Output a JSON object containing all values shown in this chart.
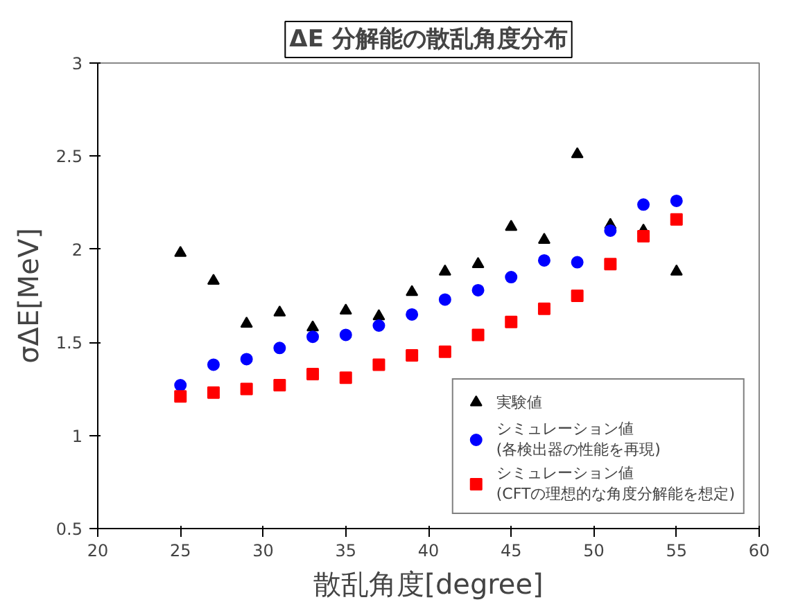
{
  "chart_data": {
    "type": "scatter",
    "title": "ΔE 分解能の散乱角度分布",
    "xlabel": "散乱角度[degree]",
    "ylabel": "σΔE[MeV]",
    "x": [
      25,
      27,
      29,
      31,
      33,
      35,
      37,
      39,
      41,
      43,
      45,
      47,
      49,
      51,
      53,
      55
    ],
    "series": [
      {
        "name": "実験値",
        "color": "#000000",
        "marker": "triangle",
        "values": [
          1.98,
          1.83,
          1.6,
          1.66,
          1.58,
          1.67,
          1.64,
          1.77,
          1.88,
          1.92,
          2.12,
          2.05,
          2.51,
          2.13,
          2.1,
          1.88
        ]
      },
      {
        "name": "シミュレーション値\n(各検出器の性能を再現)",
        "color": "#0000ff",
        "marker": "circle",
        "values": [
          1.27,
          1.38,
          1.41,
          1.47,
          1.53,
          1.54,
          1.59,
          1.65,
          1.73,
          1.78,
          1.85,
          1.94,
          1.93,
          2.1,
          2.24,
          2.26
        ]
      },
      {
        "name": "シミュレーション値\n(CFTの理想的な角度分解能を想定)",
        "color": "#ff0000",
        "marker": "square",
        "values": [
          1.21,
          1.23,
          1.25,
          1.27,
          1.33,
          1.31,
          1.38,
          1.43,
          1.45,
          1.54,
          1.61,
          1.68,
          1.75,
          1.92,
          2.07,
          2.16
        ]
      }
    ],
    "xlim": [
      20,
      60
    ],
    "ylim": [
      0.5,
      3
    ],
    "xticks": [
      20,
      25,
      30,
      35,
      40,
      45,
      50,
      55,
      60
    ],
    "yticks": [
      0.5,
      1,
      1.5,
      2,
      2.5,
      3
    ],
    "grid": false,
    "legend": "bottom right"
  }
}
